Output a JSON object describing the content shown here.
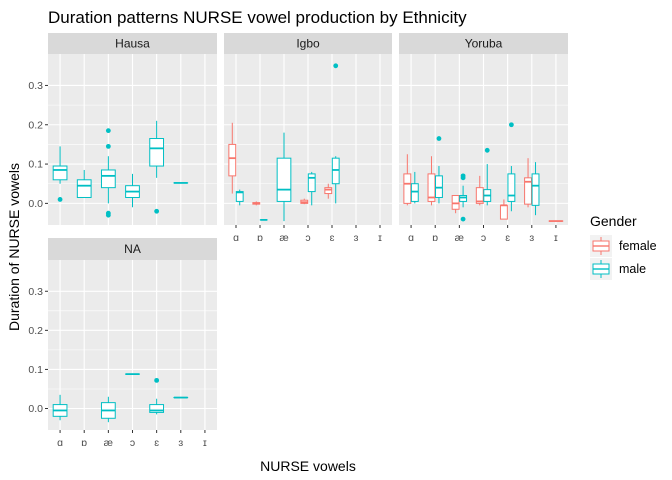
{
  "chart_data": {
    "type": "boxplot",
    "title": "Duration patterns NURSE vowel production by Ethnicity",
    "xlabel": "NURSE vowels",
    "ylabel": "Duration of NURSE vowels",
    "categories": [
      "ɑ",
      "ɒ",
      "æ",
      "ɔ",
      "ɛ",
      "ɜ",
      "ɪ"
    ],
    "y_ticks": [
      "0.0",
      "0.1",
      "0.2",
      "0.3"
    ],
    "y_tick_values": [
      0.0,
      0.1,
      0.2,
      0.3
    ],
    "ylim": [
      -0.055,
      0.38
    ],
    "grid": true,
    "facet_by": "Ethnicity",
    "legend": {
      "title": "Gender",
      "position": "right",
      "entries": [
        {
          "label": "female",
          "color": "#F8766D"
        },
        {
          "label": "male",
          "color": "#00BFC4"
        }
      ]
    },
    "colors": {
      "female": "#F8766D",
      "male": "#00BFC4",
      "panel_bg": "#EBEBEB",
      "strip_bg": "#D9D9D9"
    },
    "panels": [
      {
        "name": "Hausa",
        "boxes": [
          {
            "cat": "ɑ",
            "gender": "male",
            "min": 0.05,
            "q1": 0.06,
            "median": 0.085,
            "q3": 0.095,
            "max": 0.145,
            "outliers": [
              0.01
            ]
          },
          {
            "cat": "ɒ",
            "gender": "male",
            "min": 0.015,
            "q1": 0.015,
            "median": 0.045,
            "q3": 0.06,
            "max": 0.085,
            "outliers": []
          },
          {
            "cat": "æ",
            "gender": "male",
            "min": 0.0,
            "q1": 0.04,
            "median": 0.07,
            "q3": 0.085,
            "max": 0.12,
            "outliers": [
              0.185,
              0.145,
              -0.025,
              -0.03
            ]
          },
          {
            "cat": "ɔ",
            "gender": "male",
            "min": -0.01,
            "q1": 0.015,
            "median": 0.03,
            "q3": 0.045,
            "max": 0.075,
            "outliers": []
          },
          {
            "cat": "ɛ",
            "gender": "male",
            "min": 0.065,
            "q1": 0.095,
            "median": 0.14,
            "q3": 0.165,
            "max": 0.21,
            "outliers": [
              -0.02
            ]
          },
          {
            "cat": "ɜ",
            "gender": "male",
            "min": 0.052,
            "q1": 0.052,
            "median": 0.052,
            "q3": 0.052,
            "max": 0.052,
            "outliers": []
          }
        ]
      },
      {
        "name": "Igbo",
        "boxes": [
          {
            "cat": "ɑ",
            "gender": "female",
            "min": 0.025,
            "q1": 0.07,
            "median": 0.115,
            "q3": 0.15,
            "max": 0.205,
            "outliers": []
          },
          {
            "cat": "ɑ",
            "gender": "male",
            "min": -0.005,
            "q1": 0.005,
            "median": 0.028,
            "q3": 0.03,
            "max": 0.035,
            "outliers": []
          },
          {
            "cat": "ɒ",
            "gender": "female",
            "min": -0.005,
            "q1": -0.002,
            "median": 0.0,
            "q3": 0.002,
            "max": 0.005,
            "outliers": []
          },
          {
            "cat": "ɒ",
            "gender": "male",
            "min": -0.042,
            "q1": -0.042,
            "median": -0.042,
            "q3": -0.042,
            "max": -0.042,
            "outliers": []
          },
          {
            "cat": "æ",
            "gender": "male",
            "min": -0.045,
            "q1": 0.005,
            "median": 0.035,
            "q3": 0.115,
            "max": 0.18,
            "outliers": []
          },
          {
            "cat": "ɔ",
            "gender": "female",
            "min": -0.002,
            "q1": 0.0,
            "median": 0.003,
            "q3": 0.008,
            "max": 0.012,
            "outliers": []
          },
          {
            "cat": "ɔ",
            "gender": "male",
            "min": -0.005,
            "q1": 0.03,
            "median": 0.065,
            "q3": 0.075,
            "max": 0.08,
            "outliers": []
          },
          {
            "cat": "ɛ",
            "gender": "female",
            "min": 0.012,
            "q1": 0.025,
            "median": 0.035,
            "q3": 0.04,
            "max": 0.05,
            "outliers": []
          },
          {
            "cat": "ɛ",
            "gender": "male",
            "min": 0.0,
            "q1": 0.05,
            "median": 0.085,
            "q3": 0.115,
            "max": 0.12,
            "outliers": [
              0.35
            ]
          }
        ]
      },
      {
        "name": "Yoruba",
        "boxes": [
          {
            "cat": "ɑ",
            "gender": "female",
            "min": -0.005,
            "q1": 0.0,
            "median": 0.05,
            "q3": 0.075,
            "max": 0.125,
            "outliers": []
          },
          {
            "cat": "ɑ",
            "gender": "male",
            "min": 0.0,
            "q1": 0.005,
            "median": 0.03,
            "q3": 0.05,
            "max": 0.08,
            "outliers": []
          },
          {
            "cat": "ɒ",
            "gender": "female",
            "min": -0.005,
            "q1": 0.005,
            "median": 0.015,
            "q3": 0.075,
            "max": 0.12,
            "outliers": []
          },
          {
            "cat": "ɒ",
            "gender": "male",
            "min": 0.0,
            "q1": 0.015,
            "median": 0.04,
            "q3": 0.07,
            "max": 0.095,
            "outliers": [
              0.165
            ]
          },
          {
            "cat": "æ",
            "gender": "female",
            "min": -0.025,
            "q1": -0.015,
            "median": 0.0,
            "q3": 0.02,
            "max": 0.02,
            "outliers": []
          },
          {
            "cat": "æ",
            "gender": "male",
            "min": -0.01,
            "q1": 0.005,
            "median": 0.015,
            "q3": 0.02,
            "max": 0.045,
            "outliers": [
              0.07,
              0.065,
              -0.04
            ]
          },
          {
            "cat": "ɔ",
            "gender": "female",
            "min": -0.005,
            "q1": 0.0,
            "median": 0.005,
            "q3": 0.04,
            "max": 0.07,
            "outliers": []
          },
          {
            "cat": "ɔ",
            "gender": "male",
            "min": -0.005,
            "q1": 0.005,
            "median": 0.02,
            "q3": 0.035,
            "max": 0.1,
            "outliers": [
              0.135
            ]
          },
          {
            "cat": "ɛ",
            "gender": "female",
            "min": -0.04,
            "q1": -0.04,
            "median": -0.005,
            "q3": -0.005,
            "max": 0.01,
            "outliers": []
          },
          {
            "cat": "ɛ",
            "gender": "male",
            "min": -0.02,
            "q1": 0.005,
            "median": 0.02,
            "q3": 0.075,
            "max": 0.095,
            "outliers": [
              0.2
            ]
          },
          {
            "cat": "ɜ",
            "gender": "female",
            "min": -0.01,
            "q1": -0.002,
            "median": 0.055,
            "q3": 0.065,
            "max": 0.115,
            "outliers": []
          },
          {
            "cat": "ɜ",
            "gender": "male",
            "min": -0.03,
            "q1": -0.005,
            "median": 0.045,
            "q3": 0.075,
            "max": 0.105,
            "outliers": []
          },
          {
            "cat": "ɪ",
            "gender": "female",
            "min": -0.045,
            "q1": -0.045,
            "median": -0.045,
            "q3": -0.045,
            "max": -0.045,
            "outliers": []
          }
        ]
      },
      {
        "name": "NA",
        "boxes": [
          {
            "cat": "ɑ",
            "gender": "male",
            "min": -0.03,
            "q1": -0.02,
            "median": -0.005,
            "q3": 0.01,
            "max": 0.035,
            "outliers": []
          },
          {
            "cat": "æ",
            "gender": "male",
            "min": -0.035,
            "q1": -0.025,
            "median": -0.005,
            "q3": 0.015,
            "max": 0.03,
            "outliers": []
          },
          {
            "cat": "ɔ",
            "gender": "male",
            "min": 0.088,
            "q1": 0.088,
            "median": 0.088,
            "q3": 0.088,
            "max": 0.088,
            "outliers": []
          },
          {
            "cat": "ɛ",
            "gender": "male",
            "min": -0.015,
            "q1": -0.01,
            "median": -0.005,
            "q3": 0.01,
            "max": 0.025,
            "outliers": [
              0.072
            ]
          },
          {
            "cat": "ɜ",
            "gender": "male",
            "min": 0.028,
            "q1": 0.028,
            "median": 0.028,
            "q3": 0.028,
            "max": 0.028,
            "outliers": []
          }
        ]
      }
    ]
  }
}
